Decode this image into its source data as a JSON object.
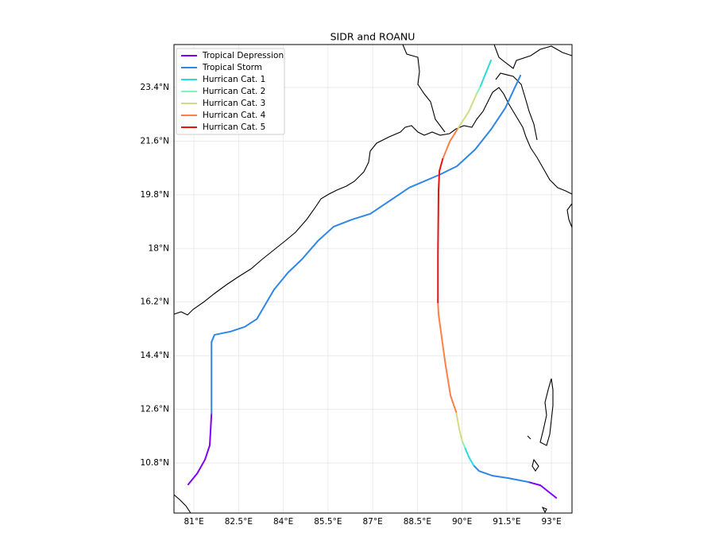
{
  "chart_data": {
    "type": "line",
    "title": "SIDR and ROANU",
    "xlim": [
      80.33,
      93.69
    ],
    "ylim": [
      9.12,
      24.84
    ],
    "xticks": [
      {
        "value": 81,
        "label": "81°E"
      },
      {
        "value": 82.5,
        "label": "82.5°E"
      },
      {
        "value": 84,
        "label": "84°E"
      },
      {
        "value": 85.5,
        "label": "85.5°E"
      },
      {
        "value": 87,
        "label": "87°E"
      },
      {
        "value": 88.5,
        "label": "88.5°E"
      },
      {
        "value": 90,
        "label": "90°E"
      },
      {
        "value": 91.5,
        "label": "91.5°E"
      },
      {
        "value": 93,
        "label": "93°E"
      }
    ],
    "yticks": [
      {
        "value": 10.8,
        "label": "10.8°N"
      },
      {
        "value": 12.6,
        "label": "12.6°N"
      },
      {
        "value": 14.4,
        "label": "14.4°N"
      },
      {
        "value": 16.2,
        "label": "16.2°N"
      },
      {
        "value": 18,
        "label": "18°N"
      },
      {
        "value": 19.8,
        "label": "19.8°N"
      },
      {
        "value": 21.6,
        "label": "21.6°N"
      },
      {
        "value": 23.4,
        "label": "23.4°N"
      }
    ],
    "grid": true,
    "legend": "upper left",
    "series": [
      {
        "name": "Tropical Depression",
        "color": "#7f00ff",
        "x": [
          80.81,
          81.11,
          81.37,
          81.53,
          81.59,
          null,
          93.16,
          92.63,
          92.23
        ],
        "values": [
          10.08,
          10.45,
          10.91,
          11.39,
          12.46,
          null,
          9.63,
          10.05,
          10.16
        ]
      },
      {
        "name": "Tropical Storm",
        "color": "#2f86e6",
        "x": [
          81.59,
          81.59,
          81.69,
          82.23,
          82.71,
          83.11,
          83.69,
          84.15,
          84.63,
          85.16,
          85.69,
          86.31,
          86.92,
          88.23,
          89.24,
          89.83,
          90.44,
          90.97,
          91.45,
          91.96,
          null,
          92.23,
          91.56,
          91.03,
          90.57,
          90.39
        ],
        "values": [
          12.46,
          14.86,
          15.1,
          15.21,
          15.37,
          15.63,
          16.62,
          17.18,
          17.64,
          18.25,
          18.73,
          18.97,
          19.16,
          20.04,
          20.47,
          20.76,
          21.32,
          21.99,
          22.71,
          23.8,
          null,
          10.16,
          10.29,
          10.37,
          10.53,
          10.72
        ]
      },
      {
        "name": "Hurrican Cat. 1",
        "color": "#2adbdb",
        "x": [
          90.39,
          90.23,
          90.09,
          null,
          90.6,
          90.97
        ],
        "values": [
          10.72,
          10.99,
          11.33,
          null,
          23.4,
          24.31
        ]
      },
      {
        "name": "Hurrican Cat. 2",
        "color": "#80f5bd",
        "x": [
          90.09,
          90.01,
          null,
          90.49,
          90.6
        ],
        "values": [
          11.33,
          11.52,
          null,
          23.19,
          23.4
        ]
      },
      {
        "name": "Hurrican Cat. 3",
        "color": "#d2dc82",
        "x": [
          90.01,
          89.91,
          89.8,
          null,
          89.85,
          90.23,
          90.49
        ],
        "values": [
          11.52,
          11.92,
          12.51,
          null,
          22.01,
          22.6,
          23.19
        ]
      },
      {
        "name": "Hurrican Cat. 4",
        "color": "#ff7f45",
        "x": [
          89.8,
          89.61,
          89.43,
          89.21,
          89.19,
          null,
          89.35,
          89.59,
          89.85
        ],
        "values": [
          12.51,
          13.07,
          14.19,
          15.79,
          16.19,
          null,
          21.0,
          21.59,
          22.01
        ]
      },
      {
        "name": "Hurrican Cat. 5",
        "color": "#e8130f",
        "x": [
          89.19,
          89.19,
          89.21,
          89.24,
          89.35
        ],
        "values": [
          16.19,
          17.8,
          19.93,
          20.6,
          21.0
        ]
      }
    ]
  }
}
